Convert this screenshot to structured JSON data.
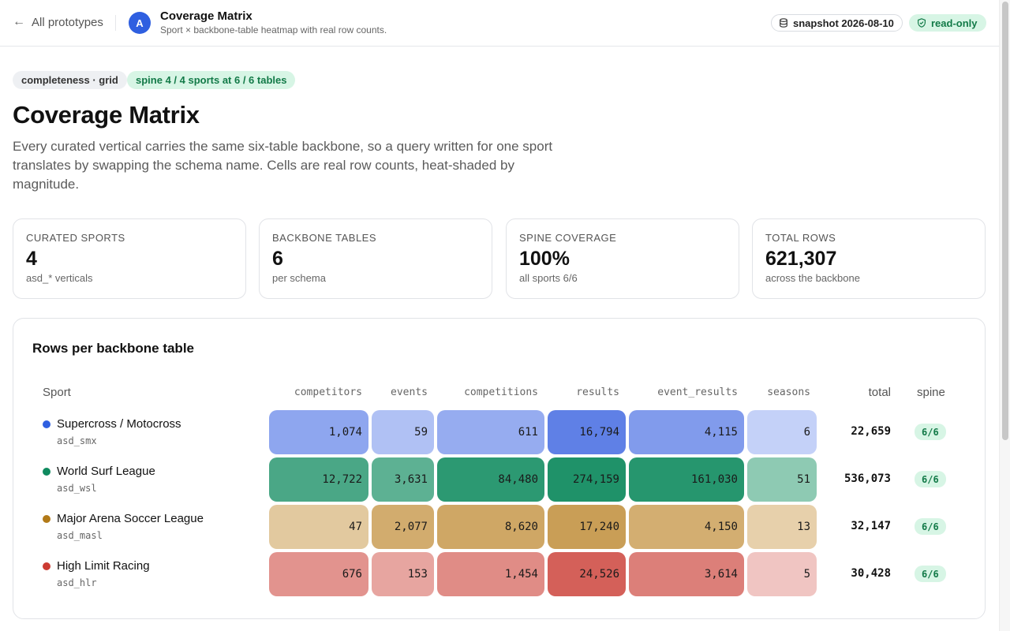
{
  "topbar": {
    "back_label": "All prototypes",
    "avatar_letter": "A",
    "title": "Coverage Matrix",
    "subtitle": "Sport × backbone-table heatmap with real row counts.",
    "snapshot_label": "snapshot 2026-08-10",
    "readonly_label": "read-only"
  },
  "tags": {
    "kind": "completeness · grid",
    "spine": "spine 4 / 4 sports at 6 / 6 tables"
  },
  "page": {
    "title": "Coverage Matrix",
    "description": "Every curated vertical carries the same six-table backbone, so a query written for one sport translates by swapping the schema name. Cells are real row counts, heat-shaded by magnitude."
  },
  "kpis": [
    {
      "label": "CURATED SPORTS",
      "value": "4",
      "sub": "asd_* verticals"
    },
    {
      "label": "BACKBONE TABLES",
      "value": "6",
      "sub": "per schema"
    },
    {
      "label": "SPINE COVERAGE",
      "value": "100%",
      "sub": "all sports 6/6"
    },
    {
      "label": "TOTAL ROWS",
      "value": "621,307",
      "sub": "across the backbone"
    }
  ],
  "matrix": {
    "title": "Rows per backbone table",
    "sport_header": "Sport",
    "total_header": "total",
    "spine_header": "spine",
    "columns": [
      "competitors",
      "events",
      "competitions",
      "results",
      "event_results",
      "seasons"
    ],
    "rows": [
      {
        "name": "Supercross / Motocross",
        "schema": "asd_smx",
        "color": "#2f5fe0",
        "cells": [
          "1,074",
          "59",
          "611",
          "16,794",
          "4,115",
          "6"
        ],
        "levels": [
          0.5,
          0.3,
          0.45,
          0.78,
          0.58,
          0.18
        ],
        "total": "22,659",
        "spine": "6/6"
      },
      {
        "name": "World Surf League",
        "schema": "asd_wsl",
        "color": "#0f8a5f",
        "cells": [
          "12,722",
          "3,631",
          "84,480",
          "274,159",
          "161,030",
          "51"
        ],
        "levels": [
          0.7,
          0.6,
          0.85,
          0.92,
          0.88,
          0.35
        ],
        "total": "536,073",
        "spine": "6/6"
      },
      {
        "name": "Major Arena Soccer League",
        "schema": "asd_masl",
        "color": "#b27a18",
        "cells": [
          "47",
          "2,077",
          "8,620",
          "17,240",
          "4,150",
          "13"
        ],
        "levels": [
          0.3,
          0.62,
          0.68,
          0.78,
          0.6,
          0.22
        ],
        "total": "32,147",
        "spine": "6/6"
      },
      {
        "name": "High Limit Racing",
        "schema": "asd_hlr",
        "color": "#cc3b32",
        "cells": [
          "676",
          "153",
          "1,454",
          "24,526",
          "3,614",
          "5"
        ],
        "levels": [
          0.5,
          0.38,
          0.55,
          0.85,
          0.64,
          0.16
        ],
        "total": "30,428",
        "spine": "6/6"
      }
    ]
  }
}
